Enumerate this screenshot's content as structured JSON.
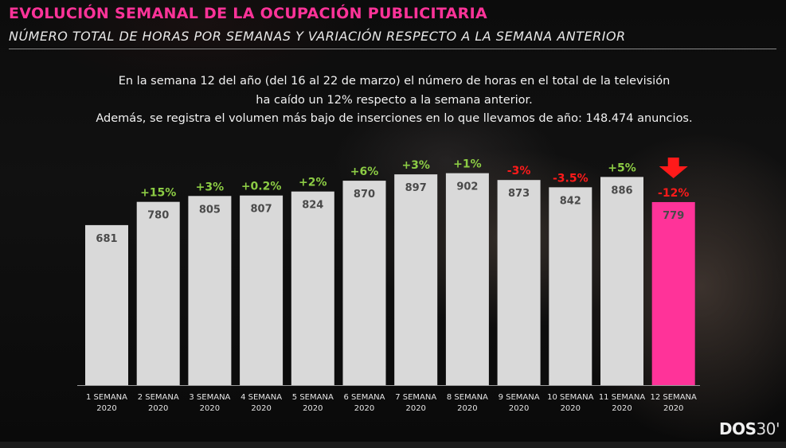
{
  "header": {
    "title": "EVOLUCIÓN SEMANAL DE LA OCUPACIÓN PUBLICITARIA",
    "subtitle": "NÚMERO TOTAL DE HORAS POR SEMANAS Y VARIACIÓN RESPECTO A LA SEMANA ANTERIOR"
  },
  "description": {
    "line1": "En la semana 12 del año (del 16 al 22 de marzo) el número de horas en el total de la televisión",
    "line2": "ha caído un 12% respecto a la semana anterior.",
    "line3": "Además, se registra el volumen más bajo de inserciones en lo que llevamos de año: 148.474 anuncios."
  },
  "logo": {
    "bold": "DOS",
    "light": "30'"
  },
  "colors": {
    "title": "#ff3399",
    "bar": "#d9d9d9",
    "highlight_bar": "#ff3399",
    "positive": "#8ccc44",
    "negative": "#ff1a1a",
    "value_text": "#4a4a4a"
  },
  "chart_data": {
    "type": "bar",
    "title": "EVOLUCIÓN SEMANAL DE LA OCUPACIÓN PUBLICITARIA",
    "xlabel": "",
    "ylabel": "",
    "ylim": [
      0,
      950
    ],
    "grid": false,
    "categories": [
      [
        "1 SEMANA",
        "2020"
      ],
      [
        "2 SEMANA",
        "2020"
      ],
      [
        "3 SEMANA",
        "2020"
      ],
      [
        "4 SEMANA",
        "2020"
      ],
      [
        "5 SEMANA",
        "2020"
      ],
      [
        "6 SEMANA",
        "2020"
      ],
      [
        "7 SEMANA",
        "2020"
      ],
      [
        "8 SEMANA",
        "2020"
      ],
      [
        "9 SEMANA",
        "2020"
      ],
      [
        "10 SEMANA",
        "2020"
      ],
      [
        "11 SEMANA",
        "2020"
      ],
      [
        "12 SEMANA",
        "2020"
      ]
    ],
    "values": [
      681,
      780,
      805,
      807,
      824,
      870,
      897,
      902,
      873,
      842,
      886,
      779
    ],
    "value_labels": [
      "681",
      "780",
      "805",
      "807",
      "824",
      "870",
      "897",
      "902",
      "873",
      "842",
      "886",
      "779"
    ],
    "variations": [
      "",
      "+15%",
      "+3%",
      "+0.2%",
      "+2%",
      "+6%",
      "+3%",
      "+1%",
      "-3%",
      "-3.5%",
      "+5%",
      "-12%"
    ],
    "highlight_index": 11
  }
}
